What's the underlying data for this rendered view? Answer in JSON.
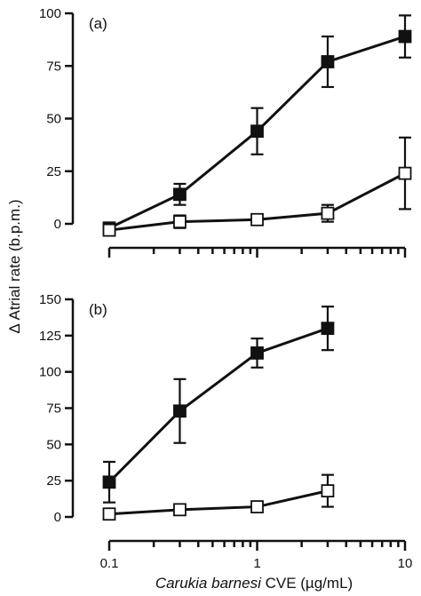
{
  "chart_data": [
    {
      "type": "line",
      "panel_label": "(a)",
      "x": [
        0.1,
        0.3,
        1,
        3,
        10
      ],
      "xscale": "log",
      "ylim": [
        0,
        100
      ],
      "yticks": [
        0,
        25,
        50,
        75,
        100
      ],
      "ytick_labels": [
        "0",
        "25",
        "50",
        "75",
        "100"
      ],
      "series": [
        {
          "marker": "filled-square",
          "color": "#111111",
          "values": [
            -2,
            14,
            44,
            77,
            89
          ],
          "err": [
            2,
            5,
            11,
            12,
            10
          ]
        },
        {
          "marker": "open-square",
          "color": "#111111",
          "values": [
            -3,
            1,
            2,
            5,
            24
          ],
          "err": [
            2,
            3,
            2,
            4,
            17
          ]
        }
      ]
    },
    {
      "type": "line",
      "panel_label": "(b)",
      "x": [
        0.1,
        0.3,
        1,
        3,
        10
      ],
      "xscale": "log",
      "ylim": [
        0,
        150
      ],
      "yticks": [
        0,
        25,
        50,
        75,
        100,
        125,
        150
      ],
      "ytick_labels": [
        "0",
        "25",
        "50",
        "75",
        "100",
        "125",
        "150"
      ],
      "series": [
        {
          "marker": "filled-square",
          "color": "#111111",
          "x": [
            0.1,
            0.3,
            1,
            3
          ],
          "values": [
            24,
            73,
            113,
            130
          ],
          "err": [
            14,
            22,
            10,
            15
          ]
        },
        {
          "marker": "open-square",
          "color": "#111111",
          "x": [
            0.1,
            0.3,
            1,
            3
          ],
          "values": [
            2,
            5,
            7,
            18
          ],
          "err": [
            2,
            2,
            2,
            11
          ]
        }
      ]
    }
  ],
  "axes": {
    "ylabel": "Δ Atrial rate (b.p.m.)",
    "xlabel_italic": "Carukia barnesi",
    "xlabel_rest": " CVE (µg/mL)",
    "xticks": [
      0.1,
      1,
      10
    ],
    "xtick_labels": [
      "0.1",
      "1",
      "10"
    ]
  }
}
